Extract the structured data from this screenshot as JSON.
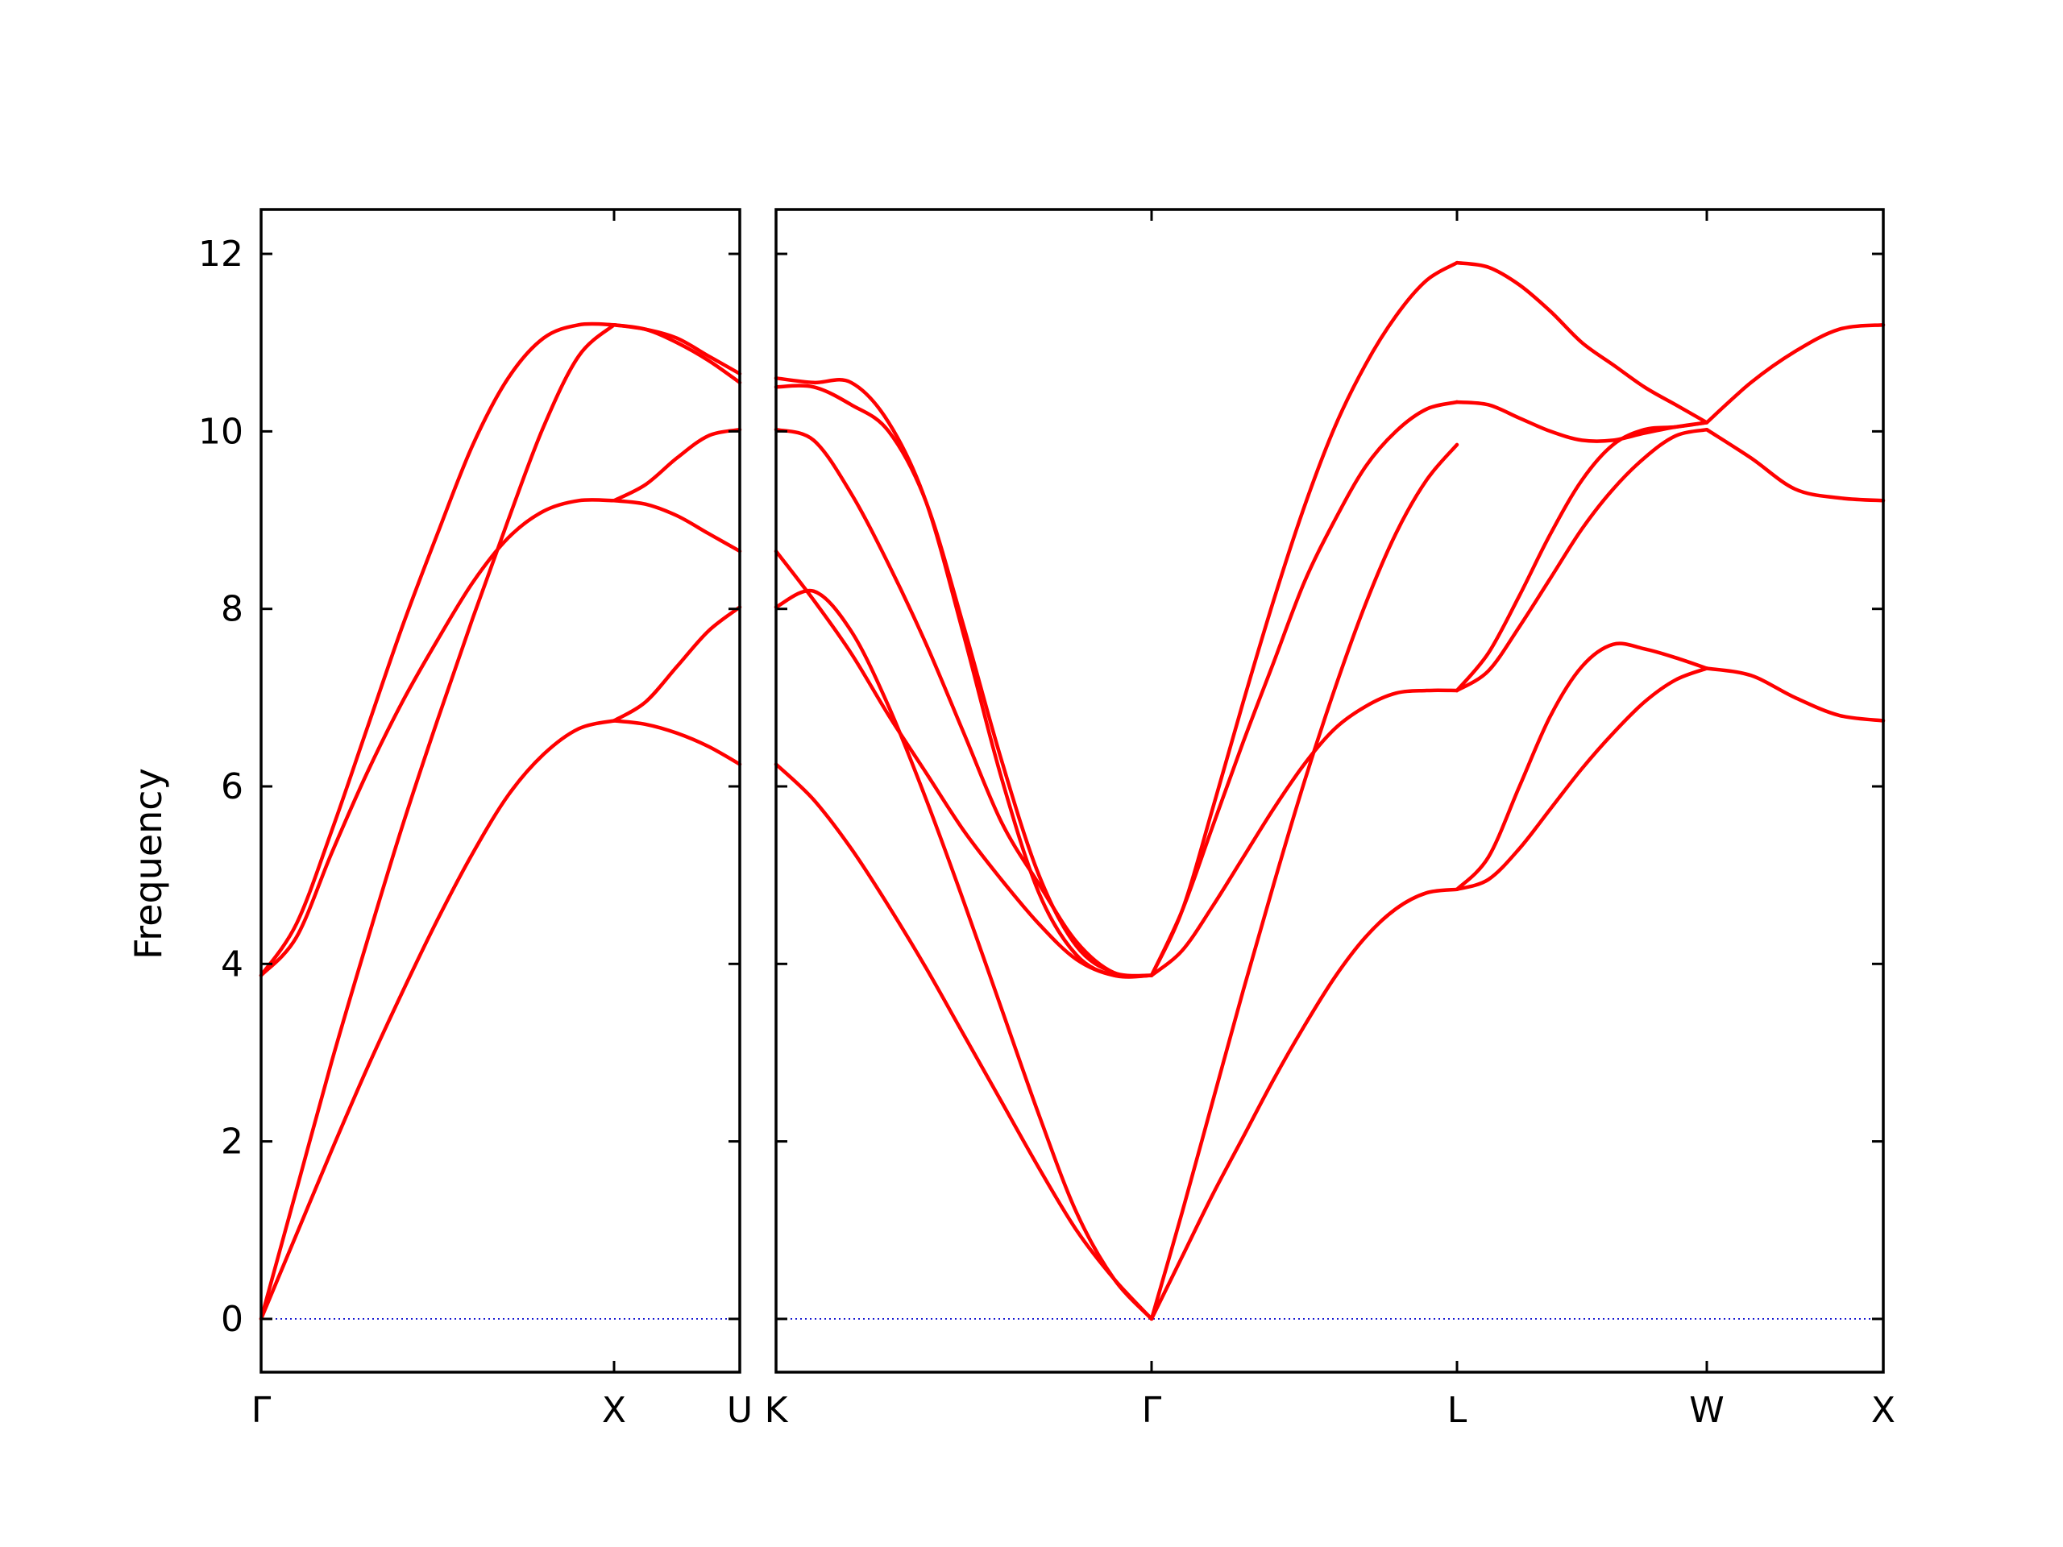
{
  "chart_data": {
    "type": "line",
    "title": "",
    "ylabel": "Frequency",
    "ylim": [
      -0.6,
      12.5
    ],
    "yticks": [
      0,
      2,
      4,
      6,
      8,
      10,
      12
    ],
    "grid": false,
    "colors": {
      "band": "#ff0000",
      "zero_line": "#0000cc"
    },
    "panels": [
      {
        "name": "Gamma-X-U",
        "x_labels": [
          "Γ",
          "X",
          "U"
        ],
        "segments": [
          {
            "from": "Γ",
            "to": "X",
            "x": [
              0,
              0.1,
              0.2,
              0.3,
              0.4,
              0.5,
              0.6,
              0.7,
              0.8,
              0.9,
              1
            ],
            "bands": [
              [
                0,
                0.95,
                1.9,
                2.82,
                3.68,
                4.5,
                5.25,
                5.9,
                6.36,
                6.65,
                6.74
              ],
              [
                0,
                1.45,
                2.9,
                4.25,
                5.55,
                6.75,
                7.9,
                9.0,
                10.05,
                10.85,
                11.2
              ],
              [
                3.87,
                4.3,
                5.25,
                6.15,
                6.95,
                7.65,
                8.3,
                8.8,
                9.1,
                9.22,
                9.22
              ],
              [
                3.87,
                4.45,
                5.5,
                6.65,
                7.8,
                8.85,
                9.85,
                10.6,
                11.05,
                11.2,
                11.2
              ]
            ]
          },
          {
            "from": "X",
            "to": "U",
            "x": [
              0,
              0.25,
              0.5,
              0.75,
              1
            ],
            "bands": [
              [
                6.74,
                6.7,
                6.6,
                6.45,
                6.25
              ],
              [
                6.74,
                6.95,
                7.35,
                7.75,
                8.02
              ],
              [
                9.22,
                9.18,
                9.05,
                8.85,
                8.65
              ],
              [
                9.22,
                9.4,
                9.7,
                9.95,
                10.02
              ],
              [
                11.2,
                11.15,
                11.0,
                10.8,
                10.55
              ],
              [
                11.2,
                11.15,
                11.05,
                10.85,
                10.65
              ]
            ]
          }
        ]
      },
      {
        "name": "K-Gamma-L-W-X",
        "x_labels": [
          "K",
          "Γ",
          "L",
          "W",
          "X"
        ],
        "segments": [
          {
            "from": "K",
            "to": "Γ",
            "x": [
              0,
              0.1,
              0.2,
              0.3,
              0.4,
              0.5,
              0.6,
              0.7,
              0.8,
              0.9,
              1
            ],
            "bands": [
              [
                6.25,
                5.85,
                5.3,
                4.65,
                3.95,
                3.2,
                2.45,
                1.7,
                1.0,
                0.45,
                0
              ],
              [
                8.02,
                8.2,
                7.75,
                6.9,
                5.85,
                4.7,
                3.5,
                2.3,
                1.2,
                0.45,
                0
              ],
              [
                8.65,
                8.1,
                7.5,
                6.8,
                6.15,
                5.5,
                4.95,
                4.45,
                4.05,
                3.87,
                3.87
              ],
              [
                10.02,
                9.9,
                9.3,
                8.5,
                7.6,
                6.6,
                5.6,
                4.9,
                4.25,
                3.9,
                3.87
              ],
              [
                10.5,
                10.5,
                10.3,
                10.0,
                9.2,
                7.8,
                6.3,
                5.0,
                4.2,
                3.9,
                3.87
              ],
              [
                10.6,
                10.55,
                10.55,
                10.1,
                9.2,
                7.7,
                6.1,
                4.8,
                4.1,
                3.87,
                3.87
              ]
            ]
          },
          {
            "from": "Γ",
            "to": "L",
            "x": [
              0,
              0.1,
              0.2,
              0.3,
              0.4,
              0.5,
              0.6,
              0.7,
              0.8,
              0.9,
              1
            ],
            "bands": [
              [
                0,
                0.7,
                1.4,
                2.05,
                2.7,
                3.3,
                3.85,
                4.3,
                4.62,
                4.8,
                4.84
              ],
              [
                0,
                1.2,
                2.45,
                3.7,
                4.9,
                6.05,
                7.1,
                8.05,
                8.85,
                9.45,
                9.85
              ],
              [
                3.87,
                4.15,
                4.65,
                5.2,
                5.75,
                6.25,
                6.65,
                6.9,
                7.05,
                7.08,
                7.08
              ],
              [
                3.87,
                4.6,
                5.75,
                6.95,
                8.1,
                9.15,
                10.05,
                10.75,
                11.3,
                11.7,
                11.9
              ],
              [
                3.87,
                4.6,
                5.55,
                6.5,
                7.4,
                8.3,
                9.0,
                9.6,
                10.0,
                10.25,
                10.33
              ]
            ]
          },
          {
            "from": "L",
            "to": "W",
            "x": [
              0,
              0.125,
              0.25,
              0.375,
              0.5,
              0.625,
              0.75,
              0.875,
              1
            ],
            "bands": [
              [
                4.84,
                4.95,
                5.3,
                5.75,
                6.2,
                6.6,
                6.95,
                7.2,
                7.33
              ],
              [
                4.84,
                5.2,
                6.0,
                6.8,
                7.35,
                7.6,
                7.55,
                7.45,
                7.33
              ],
              [
                7.08,
                7.3,
                7.8,
                8.35,
                8.9,
                9.35,
                9.7,
                9.95,
                10.02
              ],
              [
                7.08,
                7.5,
                8.15,
                8.85,
                9.45,
                9.85,
                10.02,
                10.05,
                10.1
              ],
              [
                10.33,
                10.3,
                10.15,
                10.0,
                9.9,
                9.9,
                9.98,
                10.05,
                10.1
              ],
              [
                11.9,
                11.85,
                11.65,
                11.35,
                11.0,
                10.75,
                10.5,
                10.3,
                10.1
              ]
            ]
          },
          {
            "from": "W",
            "to": "X",
            "x": [
              0,
              0.25,
              0.5,
              0.75,
              1
            ],
            "bands": [
              [
                7.33,
                7.25,
                7.0,
                6.8,
                6.74
              ],
              [
                10.02,
                9.7,
                9.35,
                9.25,
                9.22
              ],
              [
                10.1,
                10.55,
                10.9,
                11.15,
                11.2
              ]
            ]
          }
        ]
      }
    ]
  }
}
